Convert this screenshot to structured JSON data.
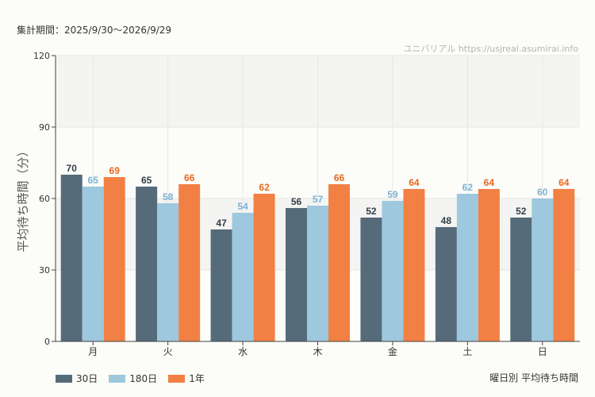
{
  "header": {
    "period": "集計期間：2025/9/30〜2026/9/29",
    "source": "ユニバリアル https://usjreal.asumirai.info"
  },
  "footer": {
    "title": "曜日別 平均待ち時間"
  },
  "chart_data": {
    "type": "bar",
    "ylabel": "平均待ち時間（分）",
    "ylim": [
      0,
      120
    ],
    "yticks": [
      0,
      30,
      60,
      90,
      120
    ],
    "categories": [
      "月",
      "火",
      "水",
      "木",
      "金",
      "土",
      "日"
    ],
    "series": [
      {
        "name": "30日",
        "color": "#556b7a",
        "label_color": "#333d4a",
        "values": [
          70,
          65,
          47,
          56,
          52,
          48,
          52
        ]
      },
      {
        "name": "180日",
        "color": "#9ec8de",
        "label_color": "#7ab3d3",
        "values": [
          65,
          58,
          54,
          57,
          59,
          62,
          60
        ]
      },
      {
        "name": "1年",
        "color": "#f28045",
        "label_color": "#e8691f",
        "values": [
          69,
          66,
          62,
          66,
          64,
          64,
          64
        ]
      }
    ],
    "grid": true,
    "legend": "bottom-left"
  }
}
